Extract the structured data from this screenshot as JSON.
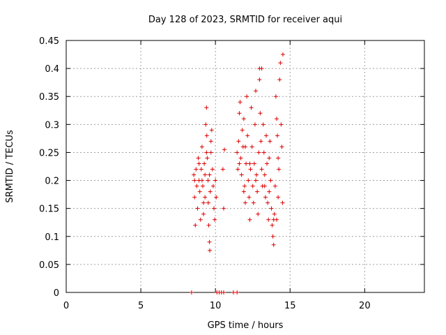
{
  "chart_data": {
    "type": "scatter",
    "title": "Day 128 of 2023, SRMTID for receiver aqui",
    "xlabel": "GPS time / hours",
    "ylabel": "SRMTID / TECUs",
    "xlim": [
      0,
      24
    ],
    "ylim": [
      0,
      0.45
    ],
    "xticks": [
      0,
      5,
      10,
      15,
      20
    ],
    "xtick_labels": [
      "0",
      "5",
      "10",
      "15",
      "20"
    ],
    "yticks": [
      0,
      0.05,
      0.1,
      0.15,
      0.2,
      0.25,
      0.3,
      0.35,
      0.4,
      0.45
    ],
    "ytick_labels": [
      "0",
      "0.05",
      "0.1",
      "0.15",
      "0.2",
      "0.25",
      "0.3",
      "0.35",
      "0.4",
      "0.45"
    ],
    "grid": true,
    "marker": "+",
    "color": "#dd0000",
    "series": [
      {
        "name": "SRMTID",
        "points": [
          [
            8.4,
            0.0
          ],
          [
            10.1,
            0.0
          ],
          [
            10.25,
            0.0
          ],
          [
            10.4,
            0.0
          ],
          [
            10.55,
            0.0
          ],
          [
            11.2,
            0.0
          ],
          [
            11.45,
            0.0
          ],
          [
            8.55,
            0.21
          ],
          [
            8.6,
            0.17
          ],
          [
            8.65,
            0.12
          ],
          [
            8.7,
            0.22
          ],
          [
            8.75,
            0.19
          ],
          [
            8.8,
            0.15
          ],
          [
            8.85,
            0.24
          ],
          [
            8.9,
            0.2
          ],
          [
            8.95,
            0.18
          ],
          [
            9.0,
            0.13
          ],
          [
            9.05,
            0.22
          ],
          [
            9.1,
            0.26
          ],
          [
            9.15,
            0.19
          ],
          [
            9.2,
            0.16
          ],
          [
            9.25,
            0.23
          ],
          [
            9.3,
            0.21
          ],
          [
            9.35,
            0.3
          ],
          [
            9.4,
            0.33
          ],
          [
            9.42,
            0.28
          ],
          [
            9.45,
            0.24
          ],
          [
            9.5,
            0.2
          ],
          [
            9.52,
            0.16
          ],
          [
            9.55,
            0.12
          ],
          [
            9.6,
            0.09
          ],
          [
            9.62,
            0.075
          ],
          [
            9.65,
            0.18
          ],
          [
            9.7,
            0.25
          ],
          [
            9.75,
            0.29
          ],
          [
            9.8,
            0.22
          ],
          [
            9.85,
            0.19
          ],
          [
            9.9,
            0.15
          ],
          [
            9.95,
            0.13
          ],
          [
            10.0,
            0.2
          ],
          [
            10.05,
            0.17
          ],
          [
            8.6,
            0.2
          ],
          [
            8.9,
            0.23
          ],
          [
            9.1,
            0.2
          ],
          [
            9.3,
            0.17
          ],
          [
            9.6,
            0.21
          ],
          [
            9.7,
            0.27
          ],
          [
            9.4,
            0.25
          ],
          [
            9.2,
            0.14
          ],
          [
            10.5,
            0.22
          ],
          [
            10.55,
            0.15
          ],
          [
            10.6,
            0.255
          ],
          [
            11.45,
            0.25
          ],
          [
            11.5,
            0.22
          ],
          [
            11.55,
            0.27
          ],
          [
            11.6,
            0.32
          ],
          [
            11.65,
            0.34
          ],
          [
            11.7,
            0.24
          ],
          [
            11.75,
            0.21
          ],
          [
            11.8,
            0.29
          ],
          [
            11.85,
            0.26
          ],
          [
            11.9,
            0.31
          ],
          [
            11.95,
            0.19
          ],
          [
            12.0,
            0.16
          ],
          [
            12.05,
            0.23
          ],
          [
            12.1,
            0.35
          ],
          [
            12.15,
            0.28
          ],
          [
            12.2,
            0.2
          ],
          [
            12.25,
            0.17
          ],
          [
            12.3,
            0.13
          ],
          [
            12.35,
            0.22
          ],
          [
            12.4,
            0.33
          ],
          [
            12.45,
            0.26
          ],
          [
            12.5,
            0.19
          ],
          [
            12.55,
            0.16
          ],
          [
            12.6,
            0.23
          ],
          [
            12.65,
            0.3
          ],
          [
            12.7,
            0.36
          ],
          [
            12.75,
            0.21
          ],
          [
            12.8,
            0.18
          ],
          [
            12.85,
            0.14
          ],
          [
            12.9,
            0.25
          ],
          [
            12.95,
            0.4
          ],
          [
            13.0,
            0.32
          ],
          [
            13.05,
            0.27
          ],
          [
            13.1,
            0.22
          ],
          [
            13.15,
            0.19
          ],
          [
            13.2,
            0.3
          ],
          [
            13.25,
            0.25
          ],
          [
            13.3,
            0.21
          ],
          [
            13.35,
            0.17
          ],
          [
            13.4,
            0.28
          ],
          [
            13.45,
            0.23
          ],
          [
            13.5,
            0.16
          ],
          [
            13.55,
            0.13
          ],
          [
            13.6,
            0.24
          ],
          [
            13.65,
            0.27
          ],
          [
            13.7,
            0.2
          ],
          [
            13.75,
            0.15
          ],
          [
            13.8,
            0.12
          ],
          [
            13.85,
            0.1
          ],
          [
            13.9,
            0.085
          ],
          [
            13.95,
            0.14
          ],
          [
            14.0,
            0.19
          ],
          [
            14.05,
            0.35
          ],
          [
            14.1,
            0.31
          ],
          [
            14.15,
            0.28
          ],
          [
            14.2,
            0.24
          ],
          [
            14.25,
            0.22
          ],
          [
            14.3,
            0.38
          ],
          [
            14.35,
            0.41
          ],
          [
            14.4,
            0.3
          ],
          [
            14.45,
            0.26
          ],
          [
            14.5,
            0.16
          ],
          [
            14.52,
            0.425
          ],
          [
            13.1,
            0.4
          ],
          [
            12.95,
            0.38
          ],
          [
            13.3,
            0.19
          ],
          [
            12.7,
            0.2
          ],
          [
            12.3,
            0.23
          ],
          [
            11.9,
            0.18
          ],
          [
            14.1,
            0.13
          ],
          [
            14.2,
            0.17
          ],
          [
            13.6,
            0.18
          ],
          [
            12.0,
            0.26
          ],
          [
            11.6,
            0.23
          ],
          [
            13.9,
            0.13
          ]
        ]
      }
    ]
  }
}
